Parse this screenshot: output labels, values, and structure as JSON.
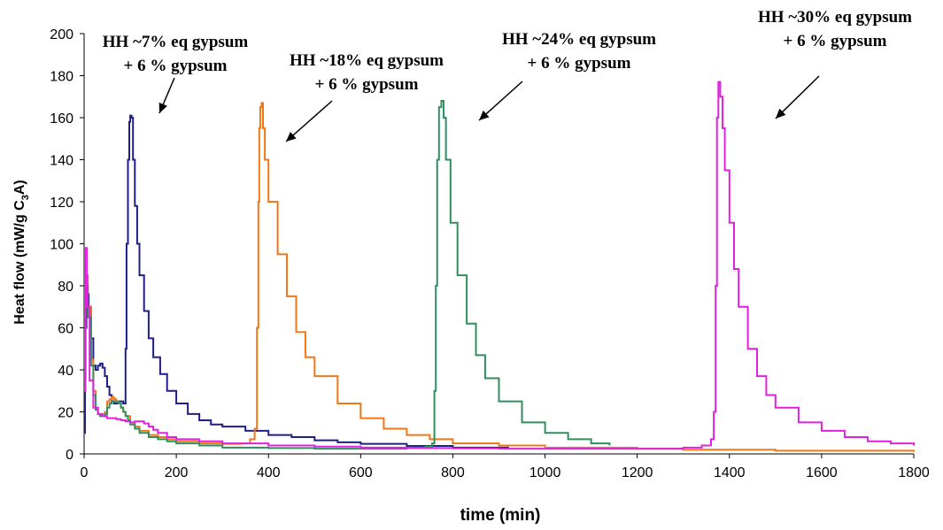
{
  "chart_data": {
    "type": "line",
    "xlabel": "time (min)",
    "ylabel": {
      "main": "Heat flow (mW/g C",
      "sub": "3",
      "tail": "A)"
    },
    "xlim": [
      0,
      1800
    ],
    "ylim": [
      0,
      200
    ],
    "xticks": [
      0,
      200,
      400,
      600,
      800,
      1000,
      1200,
      1400,
      1600,
      1800
    ],
    "yticks": [
      0,
      20,
      40,
      60,
      80,
      100,
      120,
      140,
      160,
      180,
      200
    ],
    "grid": false,
    "legend": "none",
    "annotations": [
      {
        "lines": [
          "HH ~7% eq gypsum",
          "+ 6 % gypsum"
        ]
      },
      {
        "lines": [
          "HH ~18% eq gypsum",
          "+  6 % gypsum"
        ]
      },
      {
        "lines": [
          "HH ~24% eq gypsum",
          "+  6 % gypsum"
        ]
      },
      {
        "lines": [
          "HH ~30% eq gypsum",
          "+ 6 % gypsum"
        ]
      }
    ],
    "series": [
      {
        "color": "#1f1f8c",
        "x": [
          0,
          2,
          5,
          10,
          15,
          20,
          25,
          30,
          35,
          40,
          45,
          50,
          55,
          60,
          65,
          70,
          75,
          80,
          85,
          88,
          90,
          92,
          95,
          98,
          100,
          103,
          106,
          110,
          115,
          120,
          130,
          140,
          150,
          165,
          180,
          200,
          225,
          250,
          275,
          300,
          350,
          400,
          450,
          500,
          550,
          600,
          700,
          800,
          920
        ],
        "y": [
          10,
          60,
          76,
          70,
          55,
          42,
          40,
          42,
          43,
          41,
          37,
          32,
          28,
          25,
          24,
          24,
          25,
          25,
          24,
          24,
          50,
          100,
          140,
          158,
          161,
          160,
          140,
          118,
          100,
          85,
          68,
          55,
          46,
          38,
          30,
          24,
          19,
          16,
          14,
          13,
          11,
          9,
          8,
          6.5,
          5.5,
          4.8,
          3.8,
          3,
          2.6
        ]
      },
      {
        "color": "#f07818",
        "x": [
          0,
          3,
          8,
          15,
          20,
          25,
          30,
          35,
          40,
          45,
          50,
          55,
          60,
          65,
          70,
          75,
          80,
          85,
          90,
          100,
          110,
          120,
          140,
          160,
          180,
          200,
          250,
          300,
          340,
          360,
          370,
          375,
          378,
          380,
          382,
          385,
          388,
          392,
          400,
          420,
          440,
          460,
          480,
          500,
          550,
          600,
          650,
          700,
          750,
          800,
          900,
          1000,
          1200,
          1300,
          1400,
          1500,
          1800
        ],
        "y": [
          30,
          85,
          70,
          45,
          30,
          22,
          19,
          18,
          18,
          20,
          25,
          26,
          27,
          26,
          25,
          24,
          22,
          20,
          18,
          15,
          13,
          11,
          9,
          8,
          7,
          6,
          5,
          4.8,
          5,
          7,
          12,
          60,
          120,
          155,
          165,
          167,
          155,
          140,
          120,
          95,
          75,
          58,
          46,
          37,
          24,
          17,
          12,
          9,
          7,
          5,
          4,
          3,
          2.5,
          2,
          2,
          1.5,
          1
        ]
      },
      {
        "color": "#2f8f5f",
        "x": [
          0,
          3,
          8,
          15,
          20,
          25,
          30,
          35,
          40,
          45,
          50,
          55,
          60,
          65,
          70,
          75,
          80,
          85,
          90,
          95,
          100,
          110,
          120,
          140,
          160,
          180,
          200,
          250,
          300,
          400,
          500,
          600,
          700,
          740,
          755,
          760,
          763,
          766,
          770,
          775,
          780,
          785,
          795,
          810,
          830,
          850,
          870,
          900,
          950,
          1000,
          1050,
          1100,
          1140
        ],
        "y": [
          35,
          80,
          65,
          42,
          28,
          21,
          19,
          18,
          18,
          19,
          22,
          24,
          25,
          25,
          25,
          24,
          22,
          20,
          18,
          16,
          14,
          12,
          10,
          8,
          7,
          6,
          5,
          4,
          3,
          2.8,
          2.5,
          2.5,
          3,
          3.5,
          5,
          30,
          80,
          140,
          165,
          168,
          160,
          140,
          110,
          85,
          62,
          47,
          36,
          25,
          15,
          10,
          7,
          5,
          4
        ]
      },
      {
        "color": "#e022e0",
        "x": [
          0,
          2,
          6,
          12,
          20,
          30,
          40,
          50,
          60,
          70,
          80,
          90,
          100,
          110,
          120,
          130,
          140,
          150,
          160,
          180,
          200,
          250,
          300,
          400,
          500,
          600,
          700,
          800,
          900,
          1000,
          1100,
          1200,
          1300,
          1340,
          1360,
          1366,
          1370,
          1373,
          1376,
          1380,
          1385,
          1390,
          1400,
          1410,
          1420,
          1440,
          1460,
          1480,
          1500,
          1550,
          1600,
          1650,
          1700,
          1750,
          1800
        ],
        "y": [
          30,
          98,
          70,
          35,
          22,
          19,
          18,
          17,
          17,
          16.5,
          16,
          15.5,
          15,
          15.5,
          15.5,
          14.5,
          13,
          11.5,
          10,
          8,
          7,
          6,
          5,
          4,
          3.5,
          3,
          2.8,
          2.6,
          2.5,
          2.5,
          2.5,
          2.5,
          3,
          4,
          7,
          20,
          80,
          160,
          177,
          170,
          155,
          135,
          110,
          88,
          70,
          50,
          37,
          28,
          22,
          15,
          11,
          8,
          6,
          5,
          4
        ]
      }
    ]
  }
}
